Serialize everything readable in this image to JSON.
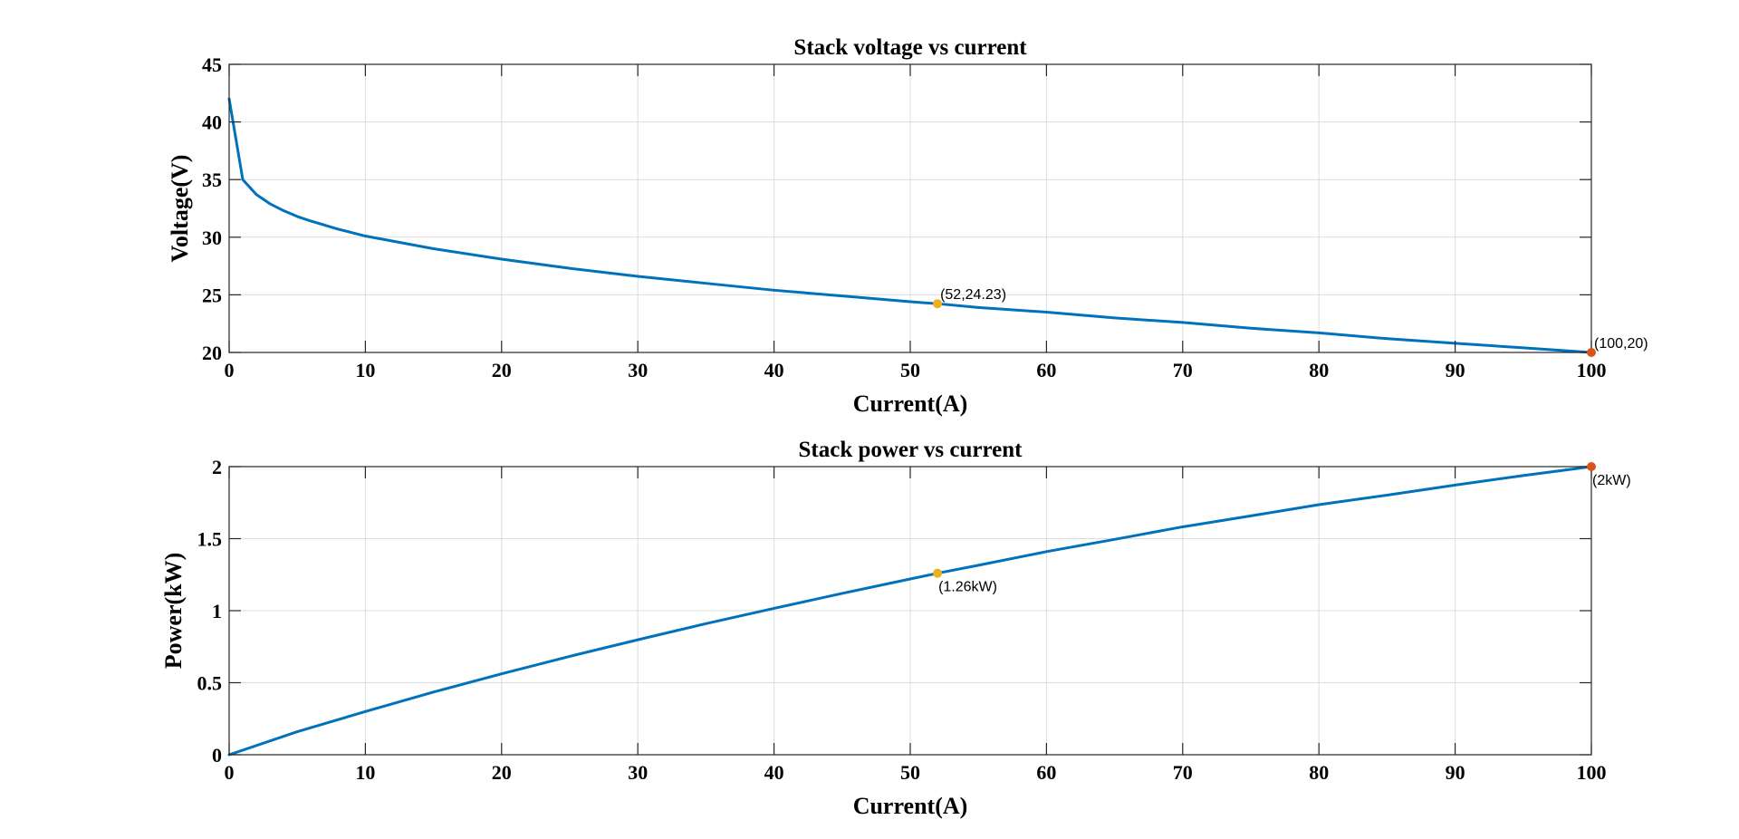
{
  "colors": {
    "line": "#0072BD",
    "marker_mid": "#EDB120",
    "marker_end": "#D95319"
  },
  "chart_data": [
    {
      "type": "line",
      "title": "Stack voltage vs current",
      "xlabel": "Current(A)",
      "ylabel": "Voltage(V)",
      "xlim": [
        0,
        100
      ],
      "ylim": [
        20,
        45
      ],
      "xticks": [
        0,
        10,
        20,
        30,
        40,
        50,
        60,
        70,
        80,
        90,
        100
      ],
      "yticks": [
        20,
        25,
        30,
        35,
        40,
        45
      ],
      "grid": true,
      "series": [
        {
          "x": [
            0,
            1,
            2,
            3,
            4,
            5,
            6,
            8,
            10,
            15,
            20,
            25,
            30,
            35,
            40,
            45,
            50,
            52,
            55,
            60,
            65,
            70,
            75,
            80,
            85,
            90,
            95,
            100
          ],
          "y": [
            42,
            35,
            33.7,
            32.9,
            32.3,
            31.8,
            31.4,
            30.7,
            30.1,
            29.0,
            28.1,
            27.3,
            26.6,
            26.0,
            25.4,
            24.9,
            24.4,
            24.23,
            23.9,
            23.5,
            23.0,
            22.6,
            22.1,
            21.7,
            21.2,
            20.8,
            20.4,
            20.0
          ]
        }
      ],
      "points": [
        {
          "x": 52,
          "y": 24.23,
          "label": "(52,24.23)",
          "color": "marker_mid"
        },
        {
          "x": 100,
          "y": 20,
          "label": "(100,20)",
          "color": "marker_end"
        }
      ]
    },
    {
      "type": "line",
      "title": "Stack power vs current",
      "xlabel": "Current(A)",
      "ylabel": "Power(kW)",
      "xlim": [
        0,
        100
      ],
      "ylim": [
        0,
        2
      ],
      "xticks": [
        0,
        10,
        20,
        30,
        40,
        50,
        60,
        70,
        80,
        90,
        100
      ],
      "yticks": [
        0,
        0.5,
        1,
        1.5,
        2
      ],
      "grid": true,
      "series": [
        {
          "x": [
            0,
            5,
            10,
            15,
            20,
            25,
            30,
            35,
            40,
            45,
            50,
            52,
            55,
            60,
            65,
            70,
            75,
            80,
            85,
            90,
            95,
            100
          ],
          "y": [
            0,
            0.16,
            0.3,
            0.435,
            0.562,
            0.683,
            0.798,
            0.91,
            1.016,
            1.12,
            1.22,
            1.26,
            1.315,
            1.41,
            1.495,
            1.582,
            1.658,
            1.736,
            1.802,
            1.872,
            1.938,
            2.0
          ]
        }
      ],
      "points": [
        {
          "x": 52,
          "y": 1.26,
          "label": "(1.26kW)",
          "color": "marker_mid"
        },
        {
          "x": 100,
          "y": 2,
          "label": "(2kW)",
          "color": "marker_end"
        }
      ]
    }
  ]
}
